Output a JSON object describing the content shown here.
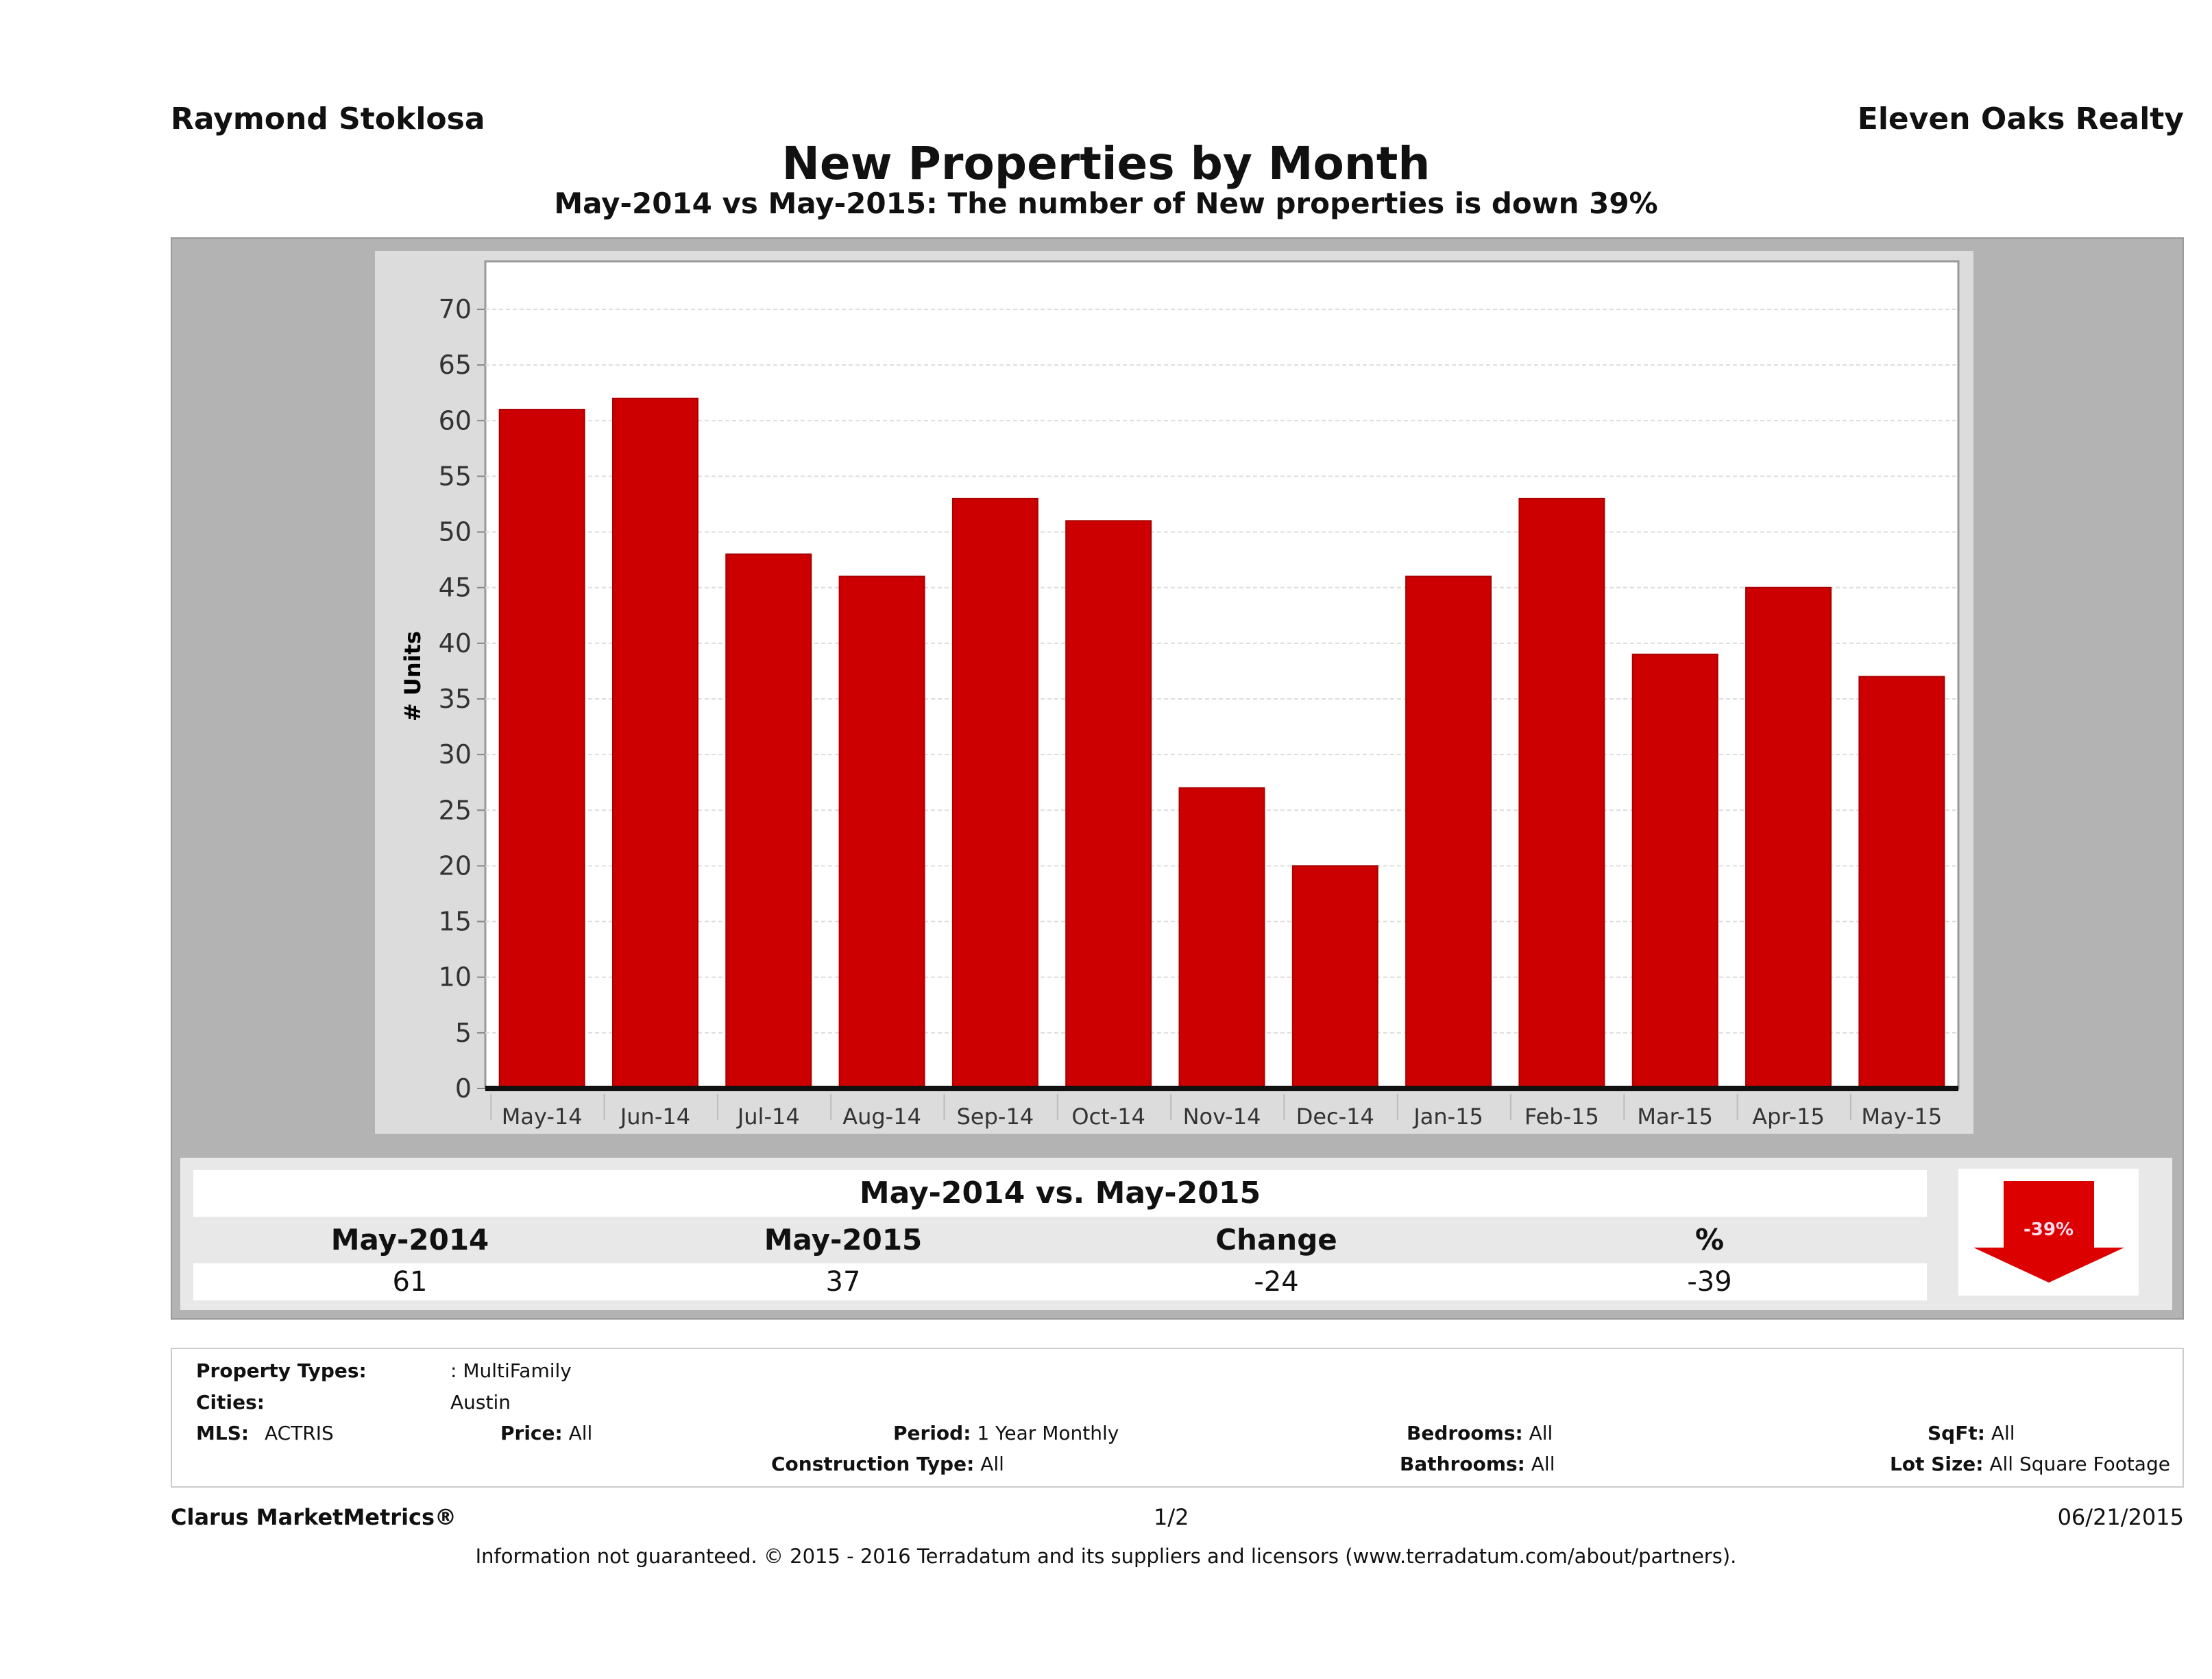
{
  "header": {
    "agent": "Raymond Stoklosa",
    "brokerage": "Eleven Oaks Realty"
  },
  "title": "New Properties by Month",
  "subtitle": "May-2014 vs May-2015: The number of New  properties is down 39%",
  "chart_data": {
    "type": "bar",
    "ylabel": "# Units",
    "xlabel": "",
    "ylim": [
      0,
      70
    ],
    "yticks": [
      0,
      5,
      10,
      15,
      20,
      25,
      30,
      35,
      40,
      45,
      50,
      55,
      60,
      65,
      70
    ],
    "grid": true,
    "categories": [
      "May-14",
      "Jun-14",
      "Jul-14",
      "Aug-14",
      "Sep-14",
      "Oct-14",
      "Nov-14",
      "Dec-14",
      "Jan-15",
      "Feb-15",
      "Mar-15",
      "Apr-15",
      "May-15"
    ],
    "values": [
      61,
      62,
      48,
      46,
      53,
      51,
      27,
      20,
      46,
      53,
      39,
      45,
      37
    ],
    "bar_color": "#cc0000"
  },
  "stats": {
    "title": "May-2014 vs. May-2015",
    "headers": [
      "May-2014",
      "May-2015",
      "Change",
      "%"
    ],
    "values": [
      "61",
      "37",
      "-24",
      "-39"
    ],
    "badge": "-39%",
    "badge_icon": "down-arrow-icon",
    "badge_color": "#dd0000"
  },
  "filters": {
    "property_types_label": "Property Types:",
    "property_types": ": MultiFamily",
    "cities_label": "Cities:",
    "cities": "Austin",
    "mls_label": "MLS:",
    "mls": "ACTRIS",
    "price_label": "Price:",
    "price": "All",
    "period_label": "Period:",
    "period": "1 Year Monthly",
    "construction_label": "Construction Type:",
    "construction": "All",
    "bedrooms_label": "Bedrooms:",
    "bedrooms": "All",
    "bathrooms_label": "Bathrooms:",
    "bathrooms": "All",
    "sqft_label": "SqFt:",
    "sqft": "All",
    "lot_label": "Lot Size:",
    "lot": "All Square Footage"
  },
  "footer": {
    "brand": "Clarus MarketMetrics®",
    "page": "1/2",
    "date": "06/21/2015",
    "disclaimer": "Information not guaranteed. © 2015 - 2016 Terradatum and its suppliers and licensors (www.terradatum.com/about/partners)."
  }
}
